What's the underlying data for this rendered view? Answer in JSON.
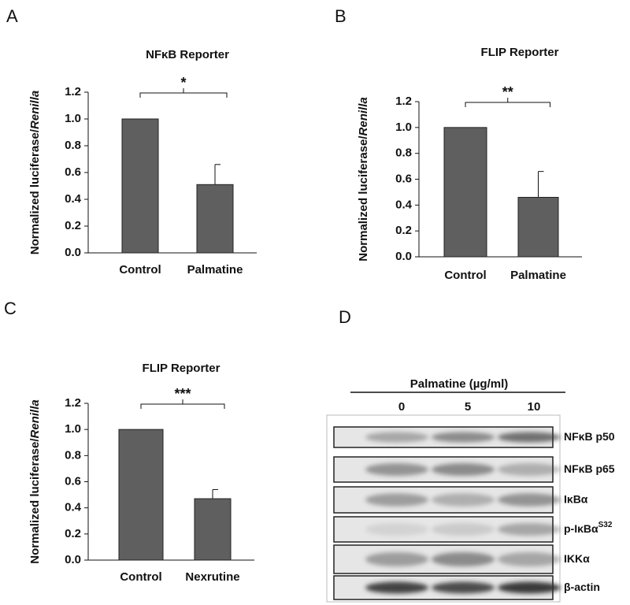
{
  "chart_data": [
    {
      "type": "bar",
      "panel_label": "A",
      "title": "NFκB Reporter",
      "ylabel": [
        "Normalized luciferase/",
        "Renilla"
      ],
      "categories": [
        "Control",
        "Palmatine"
      ],
      "values": [
        1.0,
        0.51
      ],
      "errors": [
        null,
        0.15
      ],
      "color": "#5f5f5f",
      "significance": "*",
      "ylim": [
        0,
        1.2
      ],
      "yticks": [
        {
          "value": 0,
          "label": "0.0"
        },
        0.2,
        0.4,
        0.6,
        0.8,
        {
          "value": 1,
          "label": "1.0"
        },
        1.2
      ]
    },
    {
      "type": "bar",
      "panel_label": "B",
      "title": "FLIP Reporter",
      "ylabel": [
        "Normalized luciferase/",
        "Renilla"
      ],
      "categories": [
        "Control",
        "Palmatine"
      ],
      "values": [
        1.0,
        0.46
      ],
      "errors": [
        null,
        0.2
      ],
      "color": "#5f5f5f",
      "significance": "**",
      "ylim": [
        0,
        1.2
      ],
      "yticks": [
        {
          "value": 0,
          "label": "0.0"
        },
        0.2,
        0.4,
        0.6,
        0.8,
        {
          "value": 1,
          "label": "1.0"
        },
        1.2
      ]
    },
    {
      "type": "bar",
      "panel_label": "C",
      "title": "FLIP Reporter",
      "ylabel": [
        "Normalized luciferase/",
        "Renilla"
      ],
      "categories": [
        "Control",
        "Nexrutine"
      ],
      "values": [
        1.0,
        0.47
      ],
      "errors": [
        null,
        0.07
      ],
      "color": "#5f5f5f",
      "significance": "***",
      "ylim": [
        0,
        1.2
      ],
      "yticks": [
        {
          "value": 0,
          "label": "0.0"
        },
        0.2,
        0.4,
        0.6,
        0.8,
        {
          "value": 1,
          "label": "1.0"
        },
        1.2
      ]
    }
  ],
  "blot": {
    "panel_label": "D",
    "title": "Palmatine (µg/ml)",
    "doses": [
      "0",
      "5",
      "10"
    ],
    "rows": [
      {
        "label": "NFκB p50"
      },
      {
        "label": "NFκB p65"
      },
      {
        "label": "IκBα"
      },
      {
        "label": "p-IκBα",
        "sup": "S32"
      },
      {
        "label": "IKKα"
      },
      {
        "label": "β-actin"
      }
    ]
  }
}
